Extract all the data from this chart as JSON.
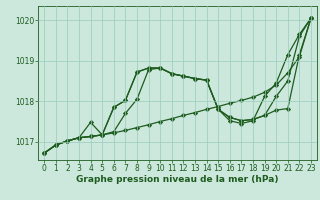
{
  "background_color": "#cce8dd",
  "grid_color": "#99ccbb",
  "line_color": "#1e5c1e",
  "marker": "D",
  "markersize": 2.2,
  "linewidth": 0.9,
  "xlabel": "Graphe pression niveau de la mer (hPa)",
  "xlabel_fontsize": 6.5,
  "tick_fontsize": 5.5,
  "xlim_min": -0.5,
  "xlim_max": 23.5,
  "ylim_min": 1016.55,
  "ylim_max": 1020.35,
  "yticks": [
    1017,
    1018,
    1019,
    1020
  ],
  "xticks": [
    0,
    1,
    2,
    3,
    4,
    5,
    6,
    7,
    8,
    9,
    10,
    11,
    12,
    13,
    14,
    15,
    16,
    17,
    18,
    19,
    20,
    21,
    22,
    23
  ],
  "series": [
    [
      1016.72,
      1016.92,
      1017.02,
      1017.1,
      1017.13,
      1017.17,
      1017.22,
      1017.28,
      1017.35,
      1017.42,
      1017.5,
      1017.57,
      1017.65,
      1017.72,
      1017.8,
      1017.87,
      1017.95,
      1018.02,
      1018.1,
      1018.22,
      1018.4,
      1018.7,
      1019.1,
      1020.05
    ],
    [
      1016.72,
      1016.92,
      1017.02,
      1017.1,
      1017.13,
      1017.17,
      1017.25,
      1017.7,
      1018.05,
      1018.78,
      1018.82,
      1018.68,
      1018.62,
      1018.56,
      1018.52,
      1017.8,
      1017.6,
      1017.52,
      1017.55,
      1017.65,
      1017.78,
      1017.82,
      1019.15,
      1020.05
    ],
    [
      1016.72,
      1016.92,
      1017.02,
      1017.1,
      1017.13,
      1017.17,
      1017.85,
      1018.02,
      1018.72,
      1018.82,
      1018.82,
      1018.68,
      1018.62,
      1018.56,
      1018.52,
      1017.8,
      1017.6,
      1017.52,
      1017.55,
      1017.65,
      1018.12,
      1018.5,
      1019.6,
      1020.05
    ],
    [
      1016.72,
      1016.92,
      1017.02,
      1017.1,
      1017.48,
      1017.17,
      1017.85,
      1018.02,
      1018.72,
      1018.82,
      1018.82,
      1018.68,
      1018.62,
      1018.56,
      1018.52,
      1017.8,
      1017.52,
      1017.45,
      1017.52,
      1018.12,
      1018.45,
      1019.15,
      1019.65,
      1020.05
    ]
  ]
}
